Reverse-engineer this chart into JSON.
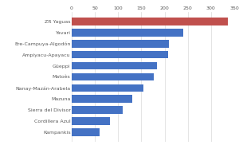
{
  "categories": [
    "ZR Yaguas",
    "Yavari",
    "Ere-Campuya-Algodón",
    "Ampiyacu-Apayacu",
    "Güeppi",
    "Matoès",
    "Nanay-Mazán-Arabela",
    "Mazuna",
    "Sierra del Divisor",
    "Cordillera Azul",
    "Kampankis"
  ],
  "values": [
    337,
    240,
    210,
    207,
    184,
    176,
    154,
    130,
    110,
    83,
    60
  ],
  "bar_colors": [
    "#c0504d",
    "#4472c4",
    "#4472c4",
    "#4472c4",
    "#4472c4",
    "#4472c4",
    "#4472c4",
    "#4472c4",
    "#4472c4",
    "#4472c4",
    "#4472c4"
  ],
  "xlim": [
    0,
    350
  ],
  "xticks": [
    0,
    50,
    100,
    150,
    200,
    250,
    300,
    350
  ],
  "background_color": "#ffffff",
  "text_color": "#595959",
  "grid_color": "#d9d9d9",
  "tick_fontsize": 4.5,
  "label_fontsize": 4.5
}
